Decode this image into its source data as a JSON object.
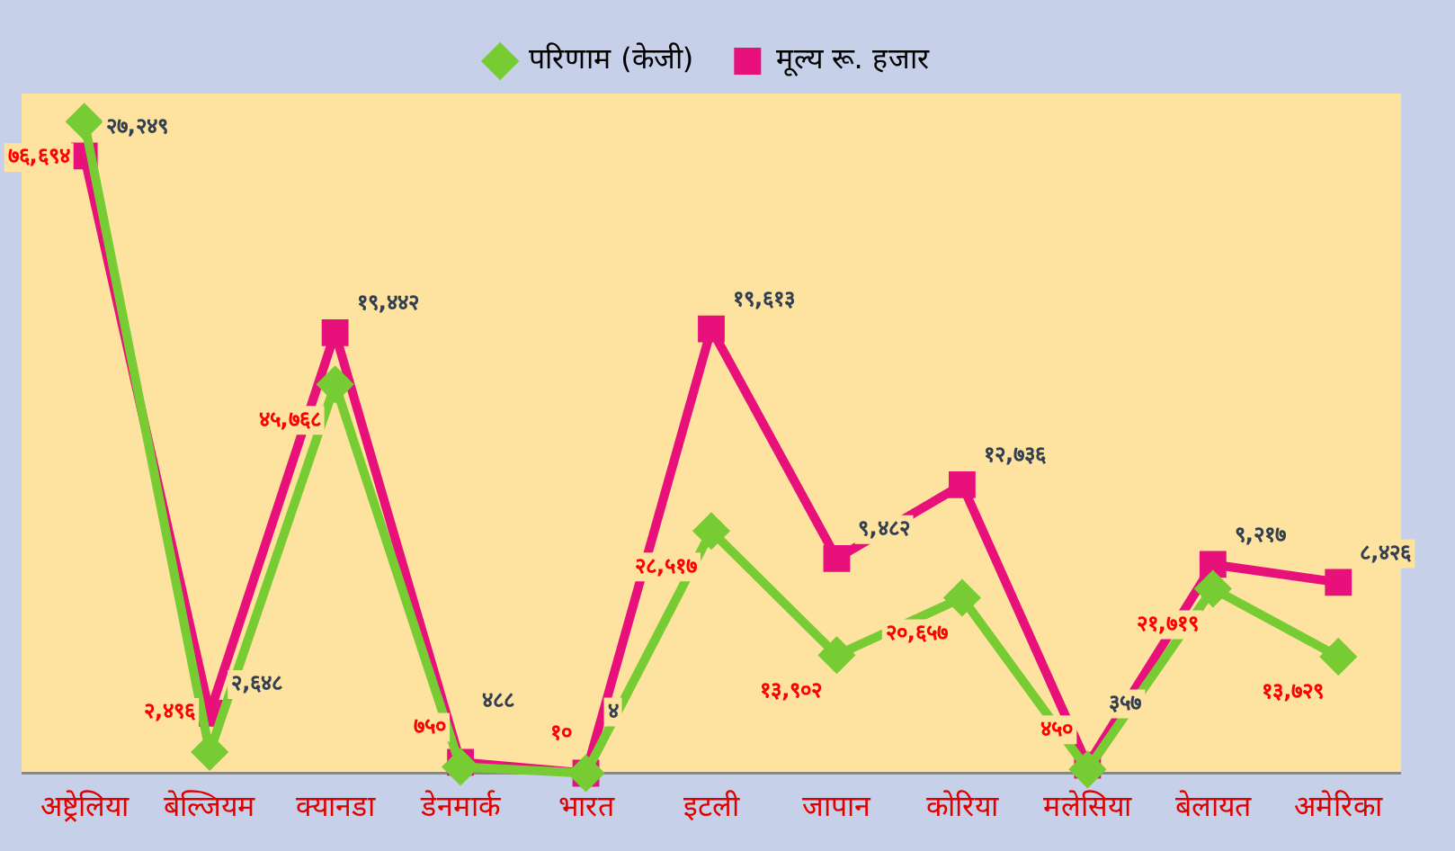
{
  "chart_data": {
    "type": "line",
    "categories": [
      "अष्ट्रेलिया",
      "बेल्जियम",
      "क्यानडा",
      "डेनमार्क",
      "भारत",
      "इटली",
      "जापान",
      "कोरिया",
      "मलेसिया",
      "बेलायत",
      "अमेरिका"
    ],
    "series": [
      {
        "name": "परिणाम (केजी)",
        "color": "#77cc33",
        "marker": "diamond",
        "values": [
          76694,
          2496,
          45768,
          750,
          10,
          28517,
          13902,
          20657,
          450,
          21719,
          13729
        ],
        "value_labels": [
          "७६,६९४",
          "२,४९६",
          "४५,७६८",
          "७५०",
          "१०",
          "२८,५१७",
          "१३,९०२",
          "२०,६५७",
          "४५०",
          "२१,७१९",
          "१३,७२९"
        ]
      },
      {
        "name": "मूल्य रू. हजार",
        "color": "#e8107a",
        "marker": "square",
        "axis": "y2",
        "values": [
          27249,
          2648,
          19442,
          488,
          4,
          19613,
          9482,
          12736,
          357,
          9217,
          8426
        ],
        "value_labels": [
          "२७,२४९",
          "२,६४८",
          "१९,४४२",
          "४८८",
          "४",
          "१९,६१३",
          "९,४८२",
          "१२,७३६",
          "३५७",
          "९,२१७",
          "८,४२६"
        ]
      }
    ],
    "legend": "top",
    "grid": false,
    "tick_labels": "x"
  }
}
